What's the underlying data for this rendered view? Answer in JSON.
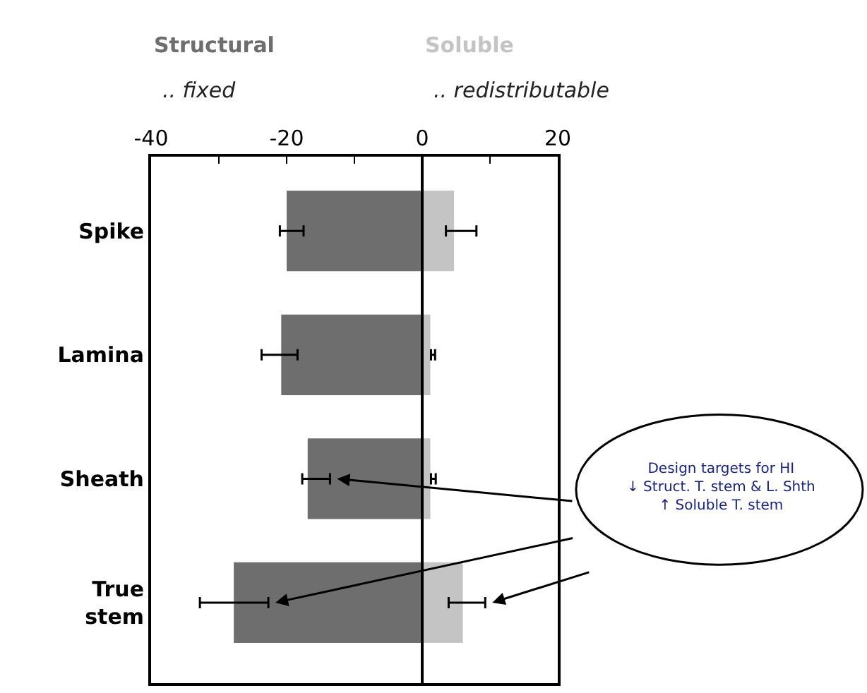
{
  "chart_data": {
    "type": "bar",
    "orientation": "horizontal",
    "categories": [
      "Spike",
      "Lamina",
      "Sheath",
      "True stem"
    ],
    "series": [
      {
        "name": "Structural",
        "color": "#6e6e6e",
        "values": [
          -20,
          -20.8,
          -16.9,
          -27.8
        ],
        "errors": [
          [
            -21,
            -17.5
          ],
          [
            -23.7,
            -18.4
          ],
          [
            -17.7,
            -13.6
          ],
          [
            -32.8,
            -22.7
          ]
        ]
      },
      {
        "name": "Soluble",
        "color": "#c4c4c4",
        "values": [
          4.7,
          1.2,
          1.2,
          6.0
        ],
        "errors": [
          [
            3.5,
            8.0
          ],
          [
            1.3,
            1.9
          ],
          [
            1.3,
            2.0
          ],
          [
            3.9,
            9.3
          ]
        ]
      }
    ],
    "stacked": true,
    "xlim": [
      -40,
      20
    ],
    "xticks": [
      -40,
      {
        "value": -30,
        "label": null
      },
      -20,
      {
        "value": -10,
        "label": null
      },
      0,
      {
        "value": 10,
        "label": null
      },
      20
    ],
    "ref_lines": [
      {
        "axis": "x",
        "value": 0,
        "color": "#000000"
      }
    ],
    "annotations": [
      ".. fixed",
      ".. redistributable",
      "Design targets for HI\n↓ Struct. T. stem & L. Shth\n↑ Soluble T. stem"
    ],
    "legend": false
  }
}
